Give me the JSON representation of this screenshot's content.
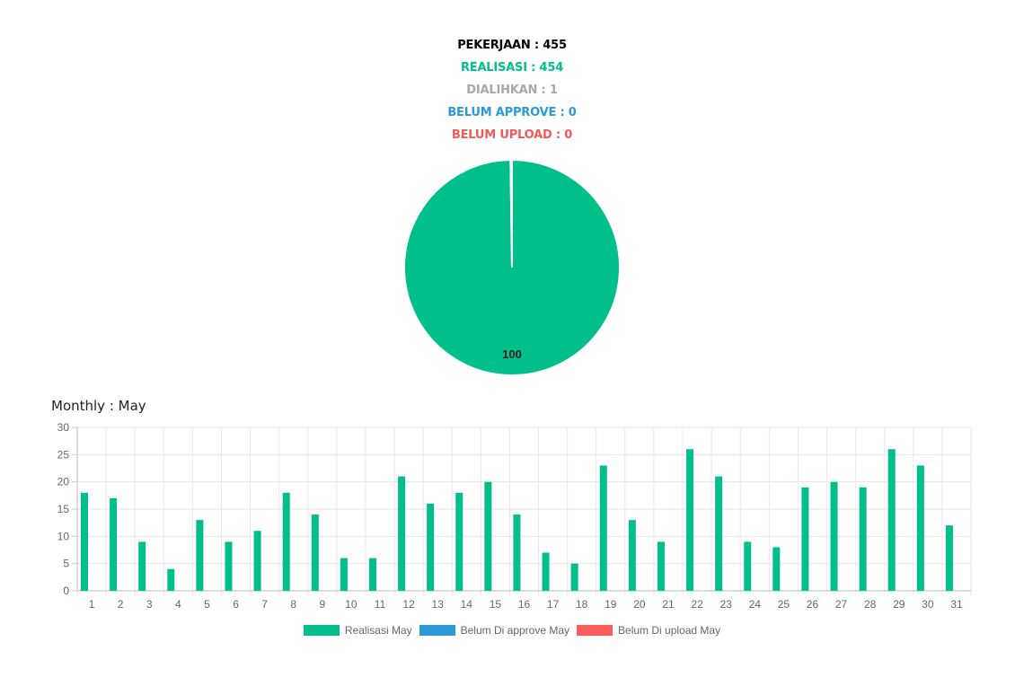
{
  "summary": {
    "pekerjaan": {
      "text": "PEKERJAAN : 455",
      "color": "#000000"
    },
    "realisasi": {
      "text": "REALISASI : 454",
      "color": "#00bf8a"
    },
    "dialihkan": {
      "text": "DIALIHKAN : 1",
      "color": "#a8a8a8"
    },
    "belum_approve": {
      "text": "BELUM APPROVE : 0",
      "color": "#2c9ad8"
    },
    "belum_upload": {
      "text": "BELUM UPLOAD : 0",
      "color": "#f15a5a"
    }
  },
  "monthly_title": "Monthly : May",
  "chart_data": [
    {
      "type": "pie",
      "slices": [
        {
          "label": "Realisasi",
          "value": 454,
          "color": "#00bf8a"
        },
        {
          "label": "Dialihkan",
          "value": 1,
          "color": "#a8a8a8"
        },
        {
          "label": "Belum Approve",
          "value": 0,
          "color": "#2c9ad8"
        },
        {
          "label": "Belum Upload",
          "value": 0,
          "color": "#f15a5a"
        }
      ],
      "data_label": "100"
    },
    {
      "type": "bar",
      "categories": [
        "1",
        "2",
        "3",
        "4",
        "5",
        "6",
        "7",
        "8",
        "9",
        "10",
        "11",
        "12",
        "13",
        "14",
        "15",
        "16",
        "17",
        "18",
        "19",
        "20",
        "21",
        "22",
        "23",
        "24",
        "25",
        "26",
        "27",
        "28",
        "29",
        "30",
        "31"
      ],
      "series": [
        {
          "name": "Realisasi May",
          "color": "#00bf8a",
          "values": [
            18,
            17,
            9,
            4,
            13,
            9,
            11,
            18,
            14,
            6,
            6,
            21,
            16,
            18,
            20,
            14,
            7,
            5,
            23,
            13,
            9,
            26,
            21,
            9,
            8,
            19,
            20,
            19,
            26,
            23,
            12
          ]
        },
        {
          "name": "Belum Di approve May",
          "color": "#2c9ad8",
          "values": [
            0,
            0,
            0,
            0,
            0,
            0,
            0,
            0,
            0,
            0,
            0,
            0,
            0,
            0,
            0,
            0,
            0,
            0,
            0,
            0,
            0,
            0,
            0,
            0,
            0,
            0,
            0,
            0,
            0,
            0,
            0
          ]
        },
        {
          "name": "Belum Di upload May",
          "color": "#ff5e5e",
          "values": [
            0,
            0,
            0,
            0,
            0,
            0,
            0,
            0,
            0,
            0,
            0,
            0,
            0,
            0,
            0,
            0,
            0,
            0,
            0,
            0,
            0,
            0,
            0,
            0,
            0,
            0,
            0,
            0,
            0,
            0,
            0
          ]
        }
      ],
      "ylim": [
        0,
        30
      ],
      "yticks": [
        "0",
        "5",
        "10",
        "15",
        "20",
        "25",
        "30"
      ],
      "grid": true,
      "legend_position": "bottom"
    }
  ]
}
